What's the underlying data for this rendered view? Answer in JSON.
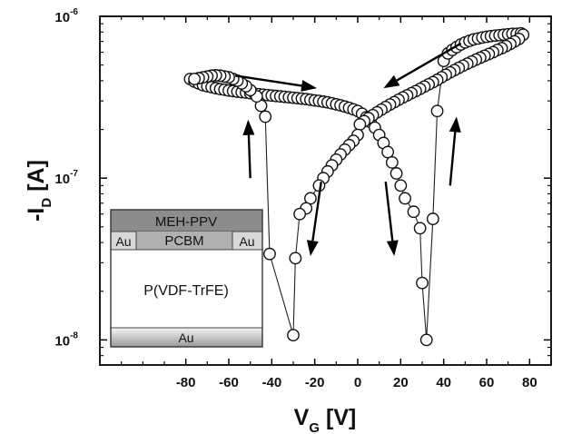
{
  "chart_data": {
    "type": "scatter",
    "xlabel": {
      "main": "V",
      "sub": "G",
      "unit": "[V]"
    },
    "ylabel": {
      "main": "-I",
      "sub": "D",
      "unit": "[A]"
    },
    "xlim": [
      -120,
      90
    ],
    "ylim": [
      7e-09,
      1e-06
    ],
    "yscale": "log",
    "x_ticks": [
      -80,
      -60,
      -40,
      -20,
      0,
      20,
      40,
      60,
      80
    ],
    "x_tick_labels": [
      "-80",
      "-60",
      "-40",
      "-20",
      "0",
      "20",
      "40",
      "60",
      "80"
    ],
    "y_ticks": [
      1e-08,
      1e-07,
      1e-06
    ],
    "y_tick_labels": [
      {
        "base": "10",
        "exp": "-8"
      },
      {
        "base": "10",
        "exp": "-7"
      },
      {
        "base": "10",
        "exp": "-6"
      }
    ],
    "grid": false,
    "marker": "open-circle",
    "series": [
      {
        "values": [
          [
            -78,
            4.1e-07
          ],
          [
            -76,
            3.95e-07
          ],
          [
            -74,
            3.85e-07
          ],
          [
            -72,
            3.75e-07
          ],
          [
            -70,
            3.7e-07
          ],
          [
            -68,
            3.65e-07
          ],
          [
            -66,
            3.6e-07
          ],
          [
            -64,
            3.55e-07
          ],
          [
            -62,
            3.52e-07
          ],
          [
            -60,
            3.48e-07
          ],
          [
            -58,
            3.45e-07
          ],
          [
            -56,
            3.42e-07
          ],
          [
            -54,
            3.4e-07
          ],
          [
            -52,
            3.38e-07
          ],
          [
            -50,
            3.35e-07
          ],
          [
            -48,
            3.33e-07
          ],
          [
            -46,
            3.3e-07
          ],
          [
            -44,
            3.28e-07
          ],
          [
            -42,
            3.26e-07
          ],
          [
            -40,
            3.24e-07
          ],
          [
            -38,
            3.22e-07
          ],
          [
            -36,
            3.2e-07
          ],
          [
            -34,
            3.18e-07
          ],
          [
            -32,
            3.16e-07
          ],
          [
            -30,
            3.14e-07
          ],
          [
            -28,
            3.12e-07
          ],
          [
            -26,
            3.1e-07
          ],
          [
            -24,
            3.08e-07
          ],
          [
            -22,
            3.05e-07
          ],
          [
            -20,
            3.02e-07
          ],
          [
            -18,
            3e-07
          ],
          [
            -16,
            2.97e-07
          ],
          [
            -14,
            2.94e-07
          ],
          [
            -12,
            2.9e-07
          ],
          [
            -10,
            2.86e-07
          ],
          [
            -8,
            2.82e-07
          ],
          [
            -6,
            2.77e-07
          ],
          [
            -4,
            2.72e-07
          ],
          [
            -2,
            2.66e-07
          ],
          [
            0,
            2.6e-07
          ],
          [
            2,
            2.5e-07
          ],
          [
            4,
            2.38e-07
          ],
          [
            6,
            2.22e-07
          ],
          [
            8,
            2.05e-07
          ],
          [
            10,
            1.85e-07
          ],
          [
            12,
            1.65e-07
          ],
          [
            14,
            1.45e-07
          ],
          [
            16,
            1.25e-07
          ],
          [
            18,
            1.07e-07
          ],
          [
            20,
            9e-08
          ],
          [
            22,
            7.5e-08
          ],
          [
            26,
            6.2e-08
          ],
          [
            29,
            4.9e-08
          ],
          [
            30,
            2.25e-08
          ],
          [
            32,
            1e-08
          ],
          [
            35,
            5.6e-08
          ],
          [
            37,
            2.6e-07
          ],
          [
            40,
            5.3e-07
          ],
          [
            42,
            5.9e-07
          ],
          [
            44,
            6.2e-07
          ],
          [
            46,
            6.45e-07
          ],
          [
            48,
            6.7e-07
          ],
          [
            50,
            6.9e-07
          ],
          [
            52,
            7.05e-07
          ],
          [
            54,
            7.2e-07
          ],
          [
            56,
            7.3e-07
          ],
          [
            58,
            7.4e-07
          ],
          [
            60,
            7.48e-07
          ],
          [
            62,
            7.55e-07
          ],
          [
            64,
            7.6e-07
          ],
          [
            66,
            7.65e-07
          ],
          [
            68,
            7.7e-07
          ],
          [
            70,
            7.75e-07
          ],
          [
            72,
            7.8e-07
          ],
          [
            74,
            7.8e-07
          ],
          [
            76,
            7.85e-07
          ],
          [
            77,
            7.7e-07
          ],
          [
            75,
            7.25e-07
          ],
          [
            73,
            7e-07
          ],
          [
            71,
            6.75e-07
          ],
          [
            69,
            6.55e-07
          ],
          [
            67,
            6.35e-07
          ],
          [
            65,
            6.2e-07
          ],
          [
            63,
            6e-07
          ],
          [
            61,
            5.85e-07
          ],
          [
            59,
            5.7e-07
          ],
          [
            57,
            5.55e-07
          ],
          [
            55,
            5.4e-07
          ],
          [
            53,
            5.25e-07
          ],
          [
            51,
            5.1e-07
          ],
          [
            49,
            4.95e-07
          ],
          [
            47,
            4.8e-07
          ],
          [
            45,
            4.65e-07
          ],
          [
            43,
            4.5e-07
          ],
          [
            41,
            4.35e-07
          ],
          [
            39,
            4.2e-07
          ],
          [
            37,
            4.05e-07
          ],
          [
            35,
            3.92e-07
          ],
          [
            33,
            3.8e-07
          ],
          [
            31,
            3.68e-07
          ],
          [
            29,
            3.56e-07
          ],
          [
            27,
            3.45e-07
          ],
          [
            25,
            3.35e-07
          ],
          [
            23,
            3.25e-07
          ],
          [
            21,
            3.15e-07
          ],
          [
            19,
            3.05e-07
          ],
          [
            17,
            2.95e-07
          ],
          [
            15,
            2.85e-07
          ],
          [
            13,
            2.75e-07
          ],
          [
            11,
            2.65e-07
          ],
          [
            9,
            2.55e-07
          ],
          [
            7,
            2.45e-07
          ],
          [
            5,
            2.35e-07
          ],
          [
            3,
            2.25e-07
          ],
          [
            1,
            2.15e-07
          ],
          [
            0,
            1.85e-07
          ],
          [
            -2,
            1.7e-07
          ],
          [
            -4,
            1.6e-07
          ],
          [
            -6,
            1.5e-07
          ],
          [
            -8,
            1.4e-07
          ],
          [
            -10,
            1.3e-07
          ],
          [
            -12,
            1.2e-07
          ],
          [
            -14,
            1.1e-07
          ],
          [
            -16,
            1e-07
          ],
          [
            -18,
            9e-08
          ],
          [
            -22,
            7.5e-08
          ],
          [
            -24,
            6.5e-08
          ],
          [
            -27,
            6e-08
          ],
          [
            -29,
            3.2e-08
          ],
          [
            -30,
            1.07e-08
          ],
          [
            -41,
            3.4e-08
          ],
          [
            -43,
            2.4e-07
          ],
          [
            -45,
            2.8e-07
          ],
          [
            -47,
            3.2e-07
          ],
          [
            -50,
            3.5e-07
          ],
          [
            -52,
            3.7e-07
          ],
          [
            -54,
            3.85e-07
          ],
          [
            -56,
            4e-07
          ],
          [
            -58,
            4.1e-07
          ],
          [
            -60,
            4.2e-07
          ],
          [
            -62,
            4.25e-07
          ],
          [
            -64,
            4.3e-07
          ],
          [
            -66,
            4.32e-07
          ],
          [
            -68,
            4.3e-07
          ],
          [
            -70,
            4.25e-07
          ],
          [
            -72,
            4.2e-07
          ],
          [
            -74,
            4.15e-07
          ],
          [
            -76,
            4.1e-07
          ]
        ]
      }
    ],
    "annotations": {
      "arrows": [
        {
          "from": [
            -57,
            4.3e-07
          ],
          "to": [
            -19,
            3.6e-07
          ]
        },
        {
          "from": [
            48,
            6.8e-07
          ],
          "to": [
            12,
            3.6e-07
          ]
        },
        {
          "from": [
            -50,
            1e-07
          ],
          "to": [
            -51,
            2.3e-07
          ]
        },
        {
          "from": [
            -17,
            9.5e-08
          ],
          "to": [
            -22,
            3.3e-08
          ]
        },
        {
          "from": [
            13,
            9.5e-08
          ],
          "to": [
            17,
            3.3e-08
          ]
        },
        {
          "from": [
            43,
            9e-08
          ],
          "to": [
            46,
            2.4e-07
          ]
        }
      ]
    },
    "inset": {
      "layers": {
        "top": "MEH-PPV",
        "mid": "PCBM",
        "electrode_left": "Au",
        "electrode_right": "Au",
        "dielectric": "P(VDF-TrFE)",
        "bottom": "Au"
      },
      "colors": {
        "top": "#8c8c8c",
        "mid": "#b0b0b0",
        "electrode": "#d8d8d8",
        "dielectric": "#ffffff",
        "bottom_gradient": [
          "#f4f4f4",
          "#9a9a9a"
        ]
      }
    }
  }
}
